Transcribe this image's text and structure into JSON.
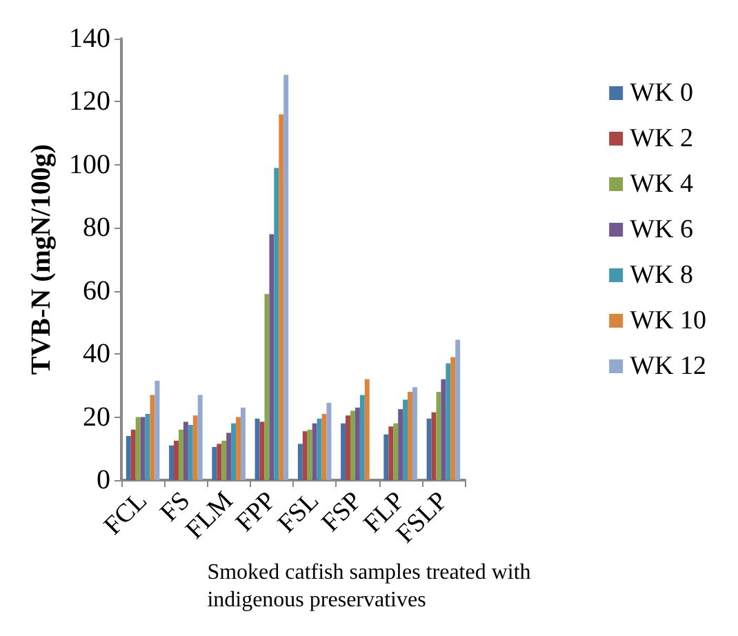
{
  "chart_data": {
    "type": "bar",
    "xlabel": "Smoked catfish samples treated with\nindigenous preservatives",
    "ylabel": "TVB-N (mgN/100g)",
    "categories": [
      "FCL",
      "FS",
      "FLM",
      "FPP",
      "FSL",
      "FSP",
      "FLP",
      "FSLP"
    ],
    "series": [
      {
        "name": "WK 0",
        "color": "#4572a7",
        "values": [
          14,
          11,
          10.5,
          19.5,
          11.5,
          18,
          14.5,
          19.5
        ]
      },
      {
        "name": "WK 2",
        "color": "#aa4643",
        "values": [
          16,
          12.5,
          11.5,
          18.5,
          15.5,
          20.5,
          17,
          21.5
        ]
      },
      {
        "name": "WK 4",
        "color": "#89a54e",
        "values": [
          20,
          16,
          12.5,
          59,
          16,
          22,
          18,
          28
        ]
      },
      {
        "name": "WK 6",
        "color": "#71588f",
        "values": [
          20,
          18.5,
          15,
          78,
          18,
          23,
          22.5,
          32
        ]
      },
      {
        "name": "WK 8",
        "color": "#4198af",
        "values": [
          21,
          17.5,
          18,
          99,
          19.5,
          27,
          25.5,
          37
        ]
      },
      {
        "name": "WK 10",
        "color": "#db843d",
        "values": [
          27,
          20.5,
          20,
          116,
          21,
          32,
          28,
          39
        ]
      },
      {
        "name": "WK 12",
        "color": "#93a9cf",
        "values": [
          31.5,
          27,
          23,
          128.5,
          24.5,
          null,
          29.5,
          44.5
        ]
      }
    ],
    "ylim": [
      0,
      140
    ],
    "yticks": [
      0,
      20,
      40,
      60,
      80,
      100,
      120,
      140
    ],
    "grid": false,
    "legend": "right"
  }
}
